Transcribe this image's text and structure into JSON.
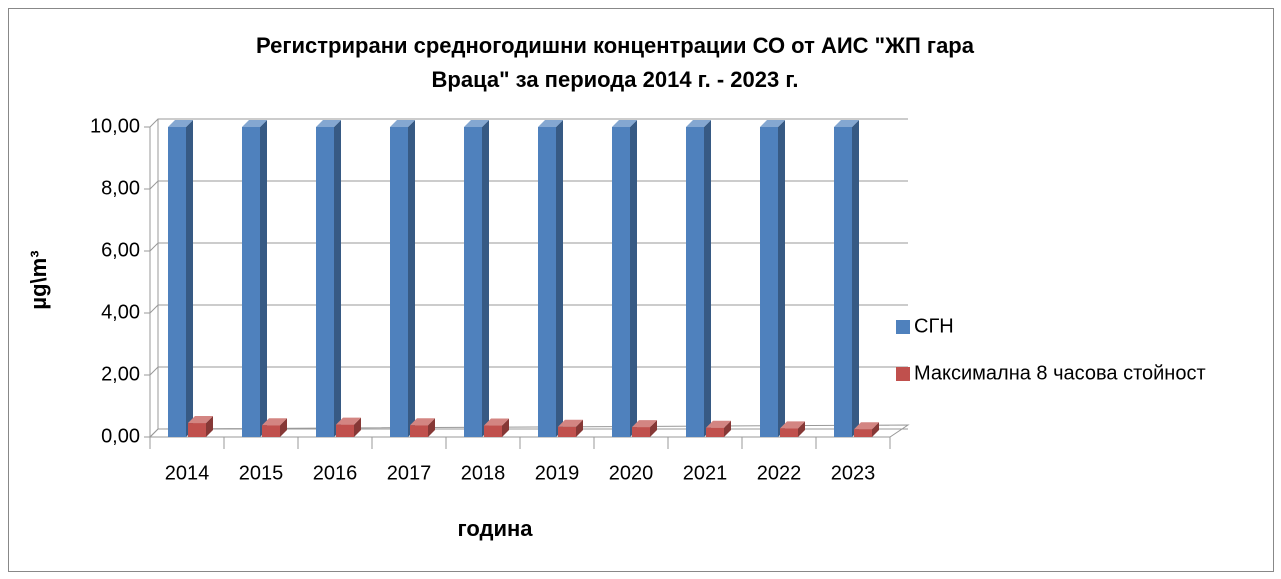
{
  "chart_data": {
    "type": "bar3d",
    "title": [
      "Регистрирани средногодишни концентрации СО от АИС \"ЖП гара",
      "Враца\" за периода 2014 г. - 2023  г."
    ],
    "y_label": "µg\\m³",
    "x_label": "година",
    "categories": [
      "2014",
      "2015",
      "2016",
      "2017",
      "2018",
      "2019",
      "2020",
      "2021",
      "2022",
      "2023"
    ],
    "series": [
      {
        "name": "СГН",
        "color": "#4f81bd",
        "values": [
          10,
          10,
          10,
          10,
          10,
          10,
          10,
          10,
          10,
          10
        ]
      },
      {
        "name": "Максимална 8 часова стойност",
        "color": "#c0504d",
        "values": [
          0.45,
          0.38,
          0.4,
          0.38,
          0.37,
          0.33,
          0.32,
          0.3,
          0.28,
          0.25
        ]
      }
    ],
    "ylim": [
      0,
      10
    ],
    "yticks": [
      {
        "value": 0,
        "label": "0,00"
      },
      {
        "value": 2,
        "label": "2,00"
      },
      {
        "value": 4,
        "label": "4,00"
      },
      {
        "value": 6,
        "label": "6,00"
      },
      {
        "value": 8,
        "label": "8,00"
      },
      {
        "value": 10,
        "label": "10,00"
      }
    ],
    "grid": true,
    "legend": "right"
  }
}
